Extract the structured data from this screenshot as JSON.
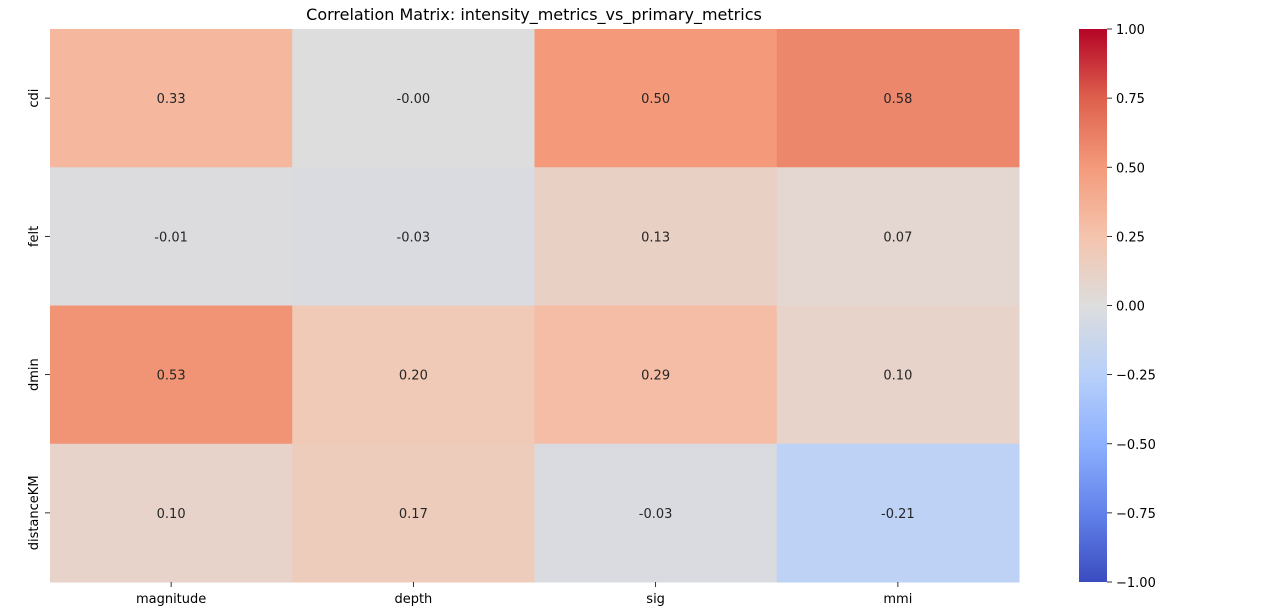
{
  "chart_data": {
    "type": "heatmap",
    "title": "Correlation Matrix: intensity_metrics_vs_primary_metrics",
    "x_categories": [
      "magnitude",
      "depth",
      "sig",
      "mmi"
    ],
    "y_categories": [
      "cdi",
      "felt",
      "dmin",
      "distanceKM"
    ],
    "values": [
      [
        0.33,
        -0.0,
        0.5,
        0.58
      ],
      [
        -0.01,
        -0.03,
        0.13,
        0.07
      ],
      [
        0.53,
        0.2,
        0.29,
        0.1
      ],
      [
        0.1,
        0.17,
        -0.03,
        -0.21
      ]
    ],
    "value_labels": [
      [
        "0.33",
        "-0.00",
        "0.50",
        "0.58"
      ],
      [
        "-0.01",
        "-0.03",
        "0.13",
        "0.07"
      ],
      [
        "0.53",
        "0.20",
        "0.29",
        "0.10"
      ],
      [
        "0.10",
        "0.17",
        "-0.03",
        "-0.21"
      ]
    ],
    "colormap": "coolwarm",
    "vmin": -1.0,
    "vmax": 1.0,
    "colorbar_ticks": [
      "1.00",
      "0.75",
      "0.50",
      "0.25",
      "0.00",
      "−0.25",
      "−0.50",
      "−0.75",
      "−1.00"
    ],
    "colorbar_tick_values": [
      1.0,
      0.75,
      0.5,
      0.25,
      0.0,
      -0.25,
      -0.5,
      -0.75,
      -1.0
    ],
    "colorbar_placement": "right",
    "grid": false
  }
}
